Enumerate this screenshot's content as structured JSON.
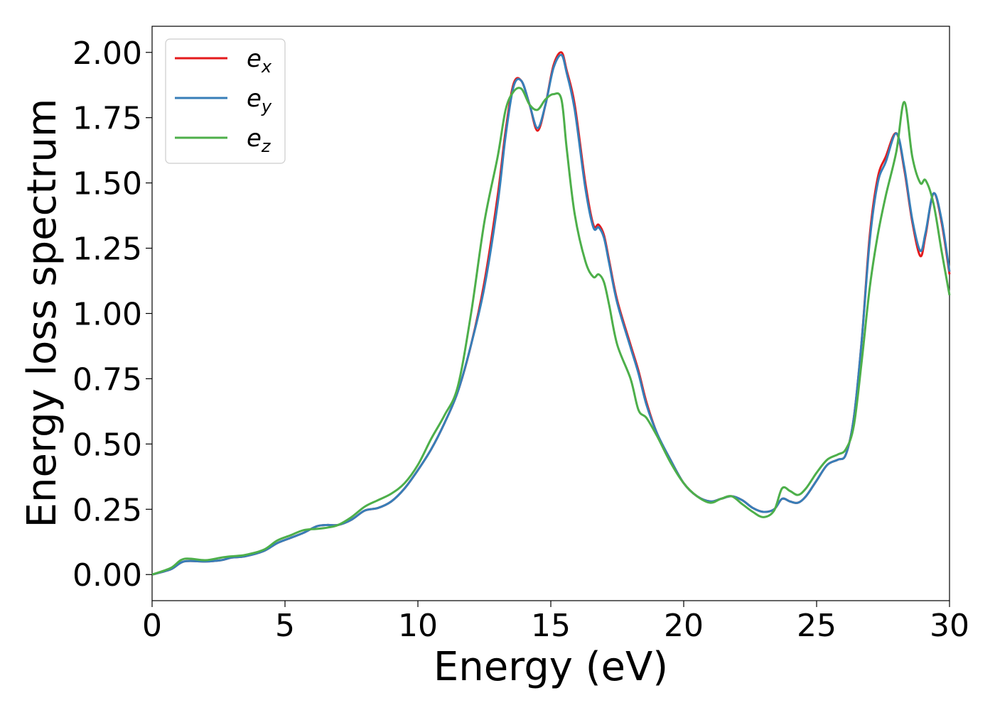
{
  "chart_data": {
    "type": "line",
    "xlabel": "Energy (eV)",
    "ylabel": "Energy loss spectrum",
    "xlim": [
      0,
      30
    ],
    "ylim": [
      -0.1,
      2.1
    ],
    "xticks": [
      0,
      5,
      10,
      15,
      20,
      25,
      30
    ],
    "xtick_labels": [
      "0",
      "5",
      "10",
      "15",
      "20",
      "25",
      "30"
    ],
    "yticks": [
      0,
      0.25,
      0.5,
      0.75,
      1.0,
      1.25,
      1.5,
      1.75,
      2.0
    ],
    "ytick_labels": [
      "0.00",
      "0.25",
      "0.50",
      "0.75",
      "1.00",
      "1.25",
      "1.50",
      "1.75",
      "2.00"
    ],
    "grid": false,
    "legend_position": "top-left",
    "series": [
      {
        "name": "e",
        "sub": "x",
        "color": "#e41a1c",
        "x": [
          0,
          0.7,
          1.2,
          2,
          2.6,
          3,
          3.5,
          4.2,
          4.7,
          5.2,
          5.7,
          6.2,
          6.6,
          7,
          7.5,
          8,
          8.5,
          9,
          9.5,
          10,
          10.5,
          11,
          11.5,
          12,
          12.5,
          13,
          13.3,
          13.6,
          13.9,
          14.2,
          14.5,
          14.8,
          15.1,
          15.4,
          15.6,
          15.9,
          16.3,
          16.6,
          16.8,
          17,
          17.2,
          17.5,
          18,
          18.3,
          18.6,
          19,
          19.5,
          20,
          20.5,
          21,
          21.4,
          21.8,
          22.2,
          22.6,
          23,
          23.4,
          23.7,
          24,
          24.3,
          24.6,
          25,
          25.4,
          25.8,
          26.1,
          26.4,
          26.7,
          27,
          27.3,
          27.6,
          28,
          28.3,
          28.6,
          28.9,
          29.1,
          29.4,
          29.7,
          30
        ],
        "values": [
          0,
          0.02,
          0.05,
          0.05,
          0.055,
          0.065,
          0.07,
          0.09,
          0.12,
          0.14,
          0.16,
          0.185,
          0.19,
          0.19,
          0.21,
          0.245,
          0.255,
          0.28,
          0.33,
          0.4,
          0.48,
          0.58,
          0.7,
          0.88,
          1.12,
          1.45,
          1.7,
          1.88,
          1.89,
          1.8,
          1.7,
          1.8,
          1.95,
          2.0,
          1.93,
          1.8,
          1.5,
          1.34,
          1.34,
          1.3,
          1.2,
          1.05,
          0.88,
          0.78,
          0.66,
          0.54,
          0.44,
          0.35,
          0.3,
          0.28,
          0.29,
          0.3,
          0.285,
          0.255,
          0.24,
          0.25,
          0.29,
          0.28,
          0.275,
          0.3,
          0.36,
          0.42,
          0.44,
          0.46,
          0.6,
          0.9,
          1.3,
          1.52,
          1.6,
          1.69,
          1.55,
          1.35,
          1.22,
          1.3,
          1.46,
          1.35,
          1.15
        ]
      },
      {
        "name": "e",
        "sub": "y",
        "color": "#377eb8",
        "x": [
          0,
          0.7,
          1.2,
          2,
          2.6,
          3,
          3.5,
          4.2,
          4.7,
          5.2,
          5.7,
          6.2,
          6.6,
          7,
          7.5,
          8,
          8.5,
          9,
          9.5,
          10,
          10.5,
          11,
          11.5,
          12,
          12.5,
          13,
          13.3,
          13.6,
          13.9,
          14.2,
          14.5,
          14.8,
          15.1,
          15.4,
          15.6,
          15.9,
          16.3,
          16.6,
          16.8,
          17,
          17.2,
          17.5,
          18,
          18.3,
          18.6,
          19,
          19.5,
          20,
          20.5,
          21,
          21.4,
          21.8,
          22.2,
          22.6,
          23,
          23.4,
          23.7,
          24,
          24.3,
          24.6,
          25,
          25.4,
          25.8,
          26.1,
          26.4,
          26.7,
          27,
          27.3,
          27.6,
          28,
          28.3,
          28.6,
          28.9,
          29.1,
          29.4,
          29.7,
          30
        ],
        "values": [
          0,
          0.02,
          0.05,
          0.05,
          0.055,
          0.065,
          0.07,
          0.09,
          0.12,
          0.14,
          0.16,
          0.185,
          0.19,
          0.19,
          0.21,
          0.245,
          0.255,
          0.28,
          0.33,
          0.4,
          0.48,
          0.58,
          0.7,
          0.88,
          1.1,
          1.42,
          1.68,
          1.87,
          1.89,
          1.8,
          1.71,
          1.8,
          1.94,
          1.99,
          1.92,
          1.78,
          1.48,
          1.33,
          1.33,
          1.29,
          1.19,
          1.04,
          0.87,
          0.77,
          0.65,
          0.54,
          0.44,
          0.35,
          0.3,
          0.28,
          0.29,
          0.3,
          0.285,
          0.255,
          0.24,
          0.25,
          0.29,
          0.28,
          0.275,
          0.3,
          0.36,
          0.42,
          0.44,
          0.46,
          0.6,
          0.9,
          1.28,
          1.5,
          1.58,
          1.69,
          1.56,
          1.36,
          1.24,
          1.31,
          1.46,
          1.36,
          1.16
        ]
      },
      {
        "name": "e",
        "sub": "z",
        "color": "#4daf4a",
        "x": [
          0,
          0.7,
          1.2,
          2,
          2.6,
          3,
          3.5,
          4.2,
          4.7,
          5.2,
          5.7,
          6.2,
          6.6,
          7,
          7.5,
          8,
          8.5,
          9,
          9.5,
          10,
          10.5,
          11,
          11.5,
          12,
          12.5,
          13,
          13.3,
          13.6,
          13.9,
          14.2,
          14.5,
          14.8,
          15.1,
          15.4,
          15.6,
          15.9,
          16.3,
          16.6,
          16.8,
          17,
          17.2,
          17.5,
          18,
          18.3,
          18.6,
          19,
          19.5,
          20,
          20.5,
          21,
          21.4,
          21.8,
          22.2,
          22.6,
          23,
          23.4,
          23.7,
          24,
          24.3,
          24.6,
          25,
          25.4,
          25.8,
          26.1,
          26.4,
          26.7,
          27,
          27.3,
          27.6,
          28,
          28.3,
          28.6,
          28.9,
          29.1,
          29.4,
          29.7,
          30
        ],
        "values": [
          0,
          0.025,
          0.06,
          0.055,
          0.065,
          0.07,
          0.075,
          0.095,
          0.13,
          0.15,
          0.17,
          0.175,
          0.18,
          0.19,
          0.22,
          0.26,
          0.285,
          0.31,
          0.35,
          0.42,
          0.52,
          0.61,
          0.72,
          1.0,
          1.35,
          1.6,
          1.78,
          1.85,
          1.86,
          1.8,
          1.78,
          1.82,
          1.84,
          1.82,
          1.63,
          1.38,
          1.2,
          1.14,
          1.15,
          1.12,
          1.03,
          0.88,
          0.75,
          0.63,
          0.6,
          0.53,
          0.43,
          0.35,
          0.3,
          0.275,
          0.29,
          0.3,
          0.27,
          0.24,
          0.22,
          0.245,
          0.33,
          0.32,
          0.305,
          0.33,
          0.39,
          0.44,
          0.46,
          0.48,
          0.57,
          0.82,
          1.1,
          1.3,
          1.45,
          1.62,
          1.81,
          1.6,
          1.5,
          1.51,
          1.42,
          1.24,
          1.07
        ]
      }
    ]
  }
}
